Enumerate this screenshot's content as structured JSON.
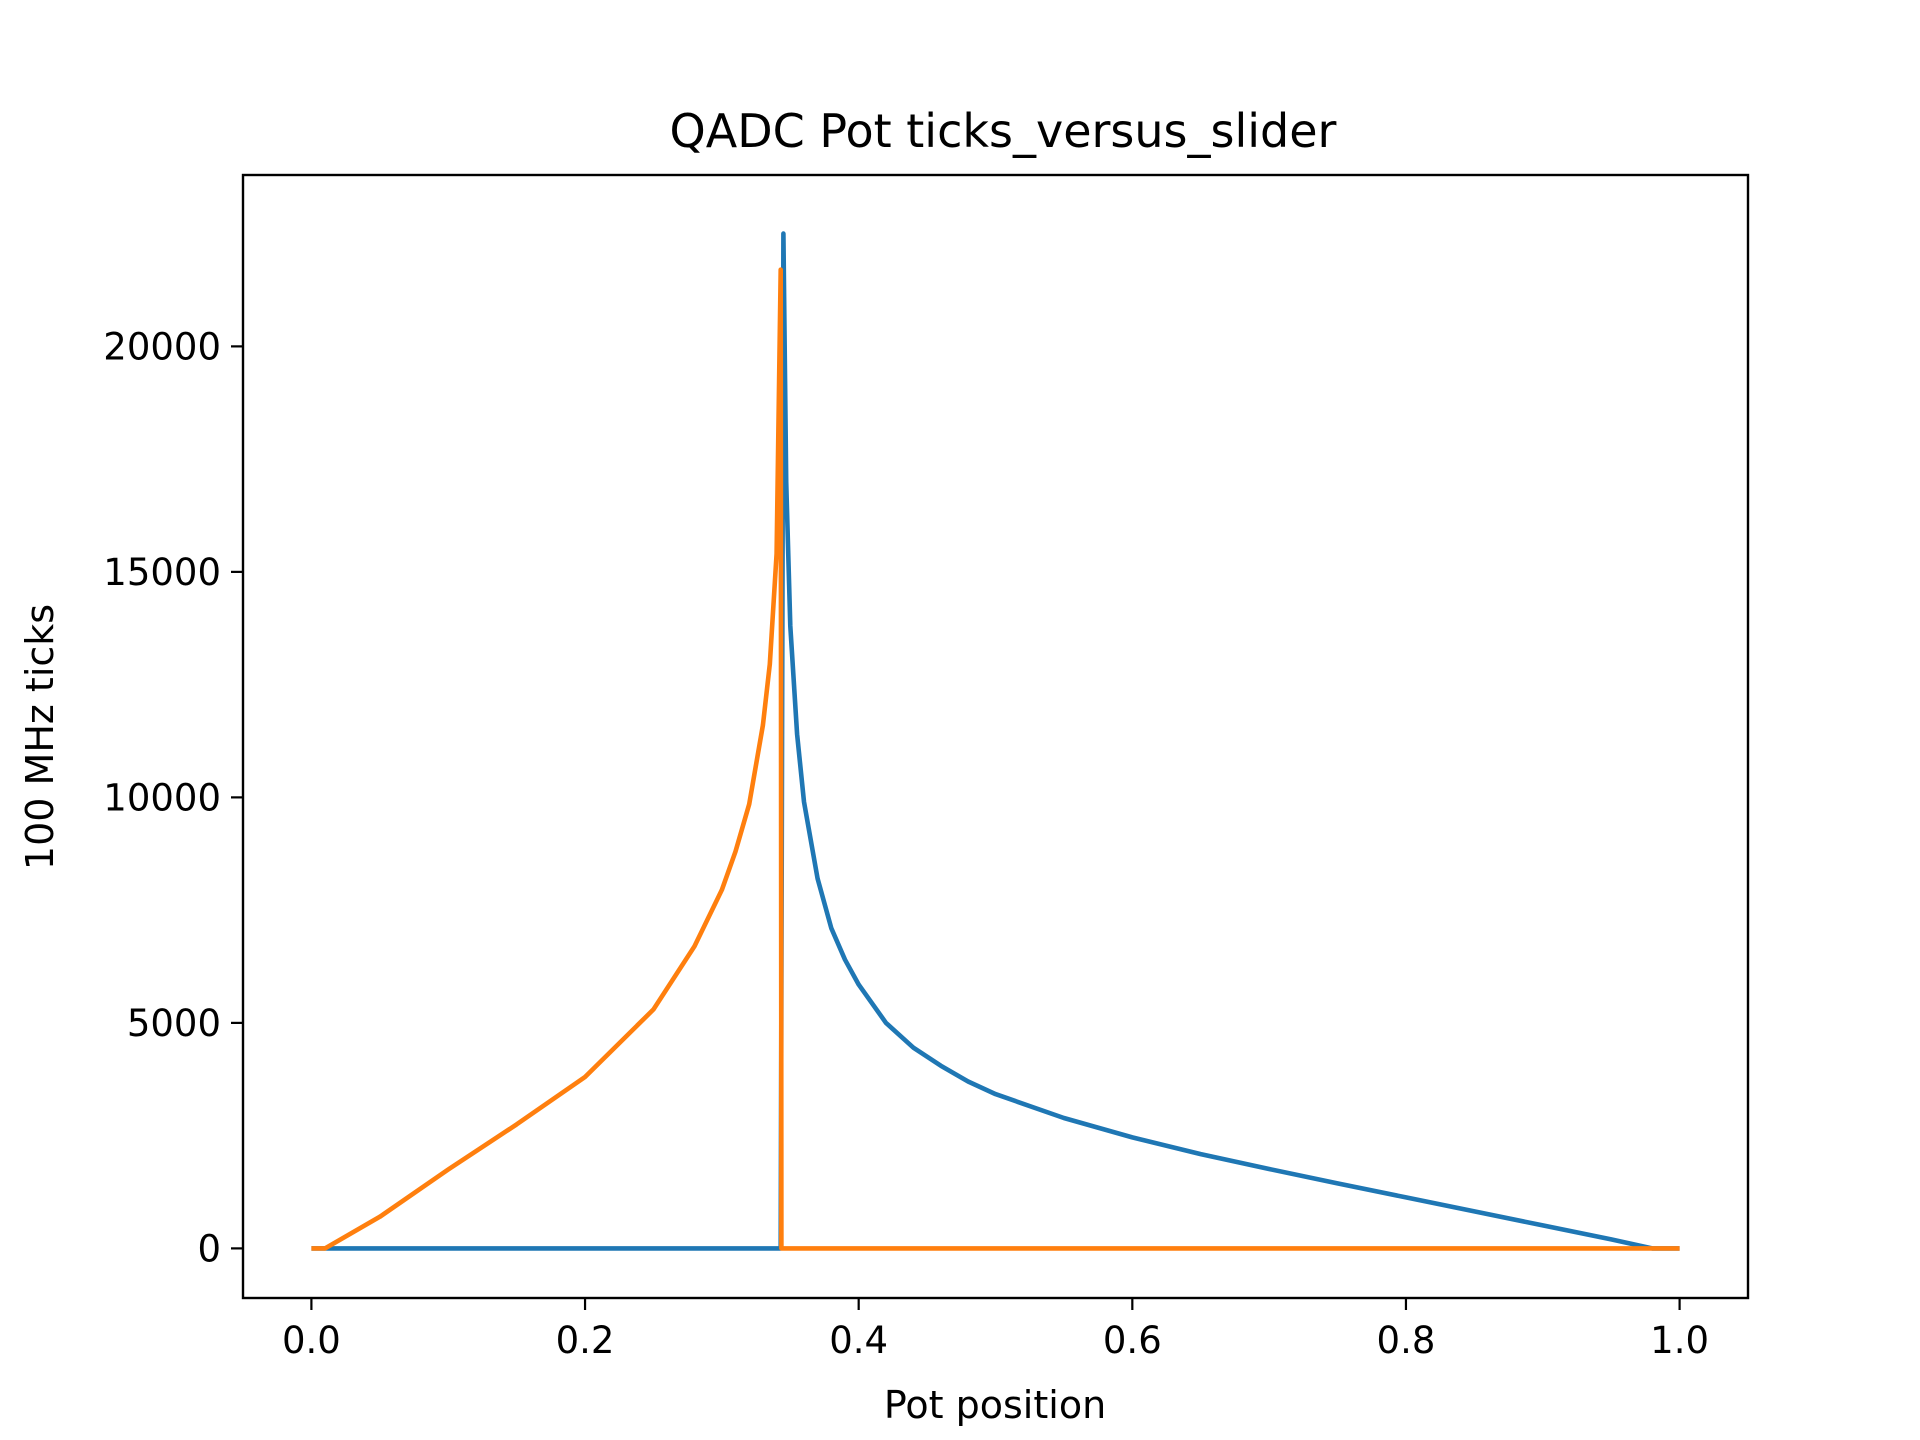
{
  "chart_data": {
    "type": "line",
    "title": "QADC Pot ticks_versus_slider",
    "xlabel": "Pot position",
    "ylabel": "100 MHz ticks",
    "xlim": [
      -0.05,
      1.05
    ],
    "ylim": [
      -1100,
      23800
    ],
    "xticks": [
      0.0,
      0.2,
      0.4,
      0.6,
      0.8,
      1.0
    ],
    "xtick_labels": [
      "0.0",
      "0.2",
      "0.4",
      "0.6",
      "0.8",
      "1.0"
    ],
    "yticks": [
      0,
      5000,
      10000,
      15000,
      20000
    ],
    "ytick_labels": [
      "0",
      "5000",
      "10000",
      "15000",
      "20000"
    ],
    "grid": false,
    "legend": "none",
    "series": [
      {
        "color": "#1f77b4",
        "x": [
          0.0,
          0.343,
          0.345,
          0.347,
          0.35,
          0.355,
          0.36,
          0.37,
          0.38,
          0.39,
          0.4,
          0.42,
          0.44,
          0.46,
          0.48,
          0.5,
          0.55,
          0.6,
          0.65,
          0.7,
          0.75,
          0.8,
          0.85,
          0.9,
          0.95,
          0.98,
          1.0
        ],
        "y": [
          0,
          0,
          22500,
          17000,
          13800,
          11400,
          9900,
          8200,
          7100,
          6400,
          5850,
          5000,
          4450,
          4050,
          3700,
          3420,
          2890,
          2460,
          2090,
          1760,
          1440,
          1130,
          820,
          510,
          200,
          0,
          0
        ]
      },
      {
        "color": "#ff7f0e",
        "x": [
          0.0,
          0.01,
          0.05,
          0.1,
          0.15,
          0.2,
          0.25,
          0.28,
          0.3,
          0.31,
          0.32,
          0.33,
          0.335,
          0.34,
          0.343,
          0.3435,
          0.345,
          1.0
        ],
        "y": [
          0,
          0,
          700,
          1750,
          2750,
          3800,
          5300,
          6700,
          7950,
          8800,
          9850,
          11600,
          12950,
          15400,
          21700,
          0,
          0,
          0
        ]
      }
    ]
  }
}
